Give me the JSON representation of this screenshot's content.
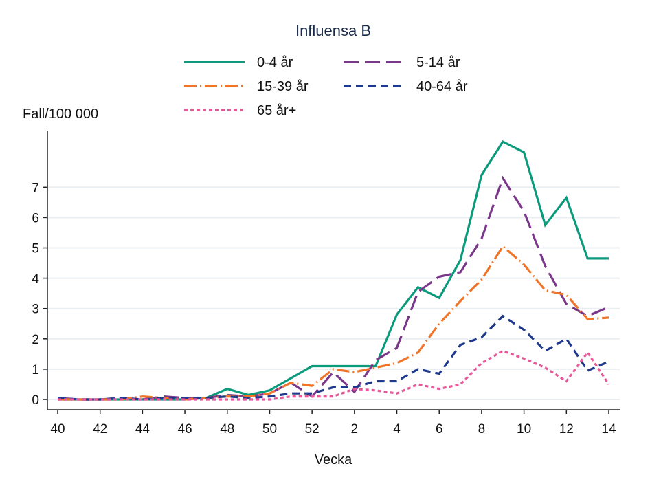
{
  "chart_data": {
    "type": "line",
    "title": "Influensa B",
    "xlabel": "Vecka",
    "ylabel": "Fall/100 000",
    "ylim": [
      0,
      8.8
    ],
    "yticks": [
      0,
      1,
      2,
      3,
      4,
      5,
      6,
      7
    ],
    "grid": true,
    "legend_placement": "top",
    "categories": [
      "40",
      "41",
      "42",
      "43",
      "44",
      "45",
      "46",
      "47",
      "48",
      "49",
      "50",
      "51",
      "52",
      "1",
      "2",
      "3",
      "4",
      "5",
      "6",
      "7",
      "8",
      "9",
      "10",
      "11",
      "12",
      "13",
      "14"
    ],
    "xtick_labels": [
      "40",
      "42",
      "44",
      "46",
      "48",
      "50",
      "52",
      "2",
      "4",
      "6",
      "8",
      "10",
      "12",
      "14"
    ],
    "series": [
      {
        "name": "0-4 år",
        "color": "#0b9a7b",
        "dash": "solid",
        "values": [
          0,
          0,
          0,
          0,
          0,
          0,
          0,
          0.05,
          0.35,
          0.15,
          0.3,
          0.7,
          1.1,
          1.1,
          1.1,
          1.1,
          2.8,
          3.7,
          3.35,
          4.6,
          7.4,
          8.5,
          8.15,
          5.75,
          6.65,
          4.65,
          4.65
        ]
      },
      {
        "name": "5-14 år",
        "color": "#7b378a",
        "dash": "longdash",
        "values": [
          0.05,
          0,
          0,
          0.05,
          0,
          0.1,
          0.05,
          0.05,
          0.15,
          0.1,
          0.2,
          0.55,
          0.1,
          0.9,
          0.25,
          1.3,
          1.7,
          3.55,
          4.05,
          4.2,
          5.3,
          7.3,
          6.2,
          4.4,
          3.15,
          2.75,
          3.05
        ]
      },
      {
        "name": "15-39 år",
        "color": "#f07528",
        "dash": "dashdot",
        "values": [
          0,
          0,
          0,
          0,
          0.1,
          0.05,
          0,
          0.05,
          0.1,
          0.1,
          0.2,
          0.55,
          0.45,
          1.0,
          0.9,
          1.05,
          1.2,
          1.55,
          2.5,
          3.25,
          3.95,
          5.05,
          4.45,
          3.6,
          3.45,
          2.65,
          2.7
        ]
      },
      {
        "name": "40-64 år",
        "color": "#1f3a8c",
        "dash": "shortdash",
        "values": [
          0.05,
          0,
          0,
          0.05,
          0,
          0.05,
          0.05,
          0.05,
          0.1,
          0.05,
          0.1,
          0.2,
          0.2,
          0.4,
          0.4,
          0.6,
          0.6,
          1.0,
          0.85,
          1.8,
          2.05,
          2.75,
          2.3,
          1.6,
          2.0,
          0.95,
          1.25
        ]
      },
      {
        "name": "65 år+",
        "color": "#e8579a",
        "dash": "dot",
        "values": [
          0,
          0,
          0,
          0,
          0,
          0,
          0,
          0,
          0,
          0,
          0,
          0.1,
          0.1,
          0.1,
          0.35,
          0.3,
          0.2,
          0.5,
          0.35,
          0.5,
          1.2,
          1.6,
          1.35,
          1.05,
          0.6,
          1.55,
          0.5
        ]
      }
    ]
  }
}
